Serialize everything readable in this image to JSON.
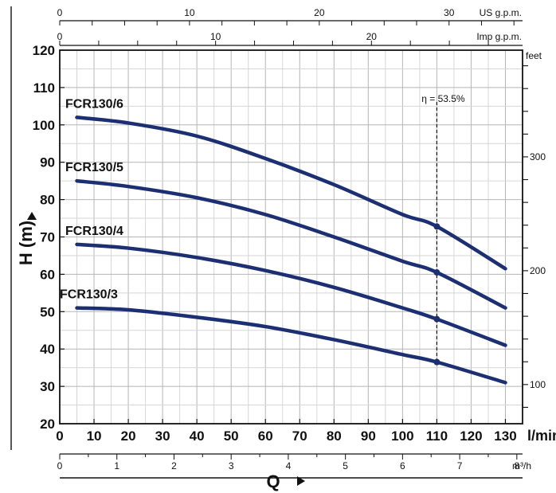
{
  "chart_data": {
    "type": "line",
    "xlabel": "Q",
    "ylabel": "H (m)",
    "x_unit": "l/min",
    "xlim": [
      0,
      135
    ],
    "ylim": [
      20,
      120
    ],
    "x_ticks": [
      0,
      10,
      20,
      30,
      40,
      50,
      60,
      70,
      80,
      90,
      100,
      110,
      120,
      130
    ],
    "y_ticks": [
      20,
      30,
      40,
      50,
      60,
      70,
      80,
      90,
      100,
      110,
      120
    ],
    "grid": true,
    "series": [
      {
        "name": "FCR130/6",
        "x": [
          5,
          20,
          40,
          60,
          80,
          100,
          110,
          130
        ],
        "y": [
          102,
          100.5,
          97,
          91,
          84,
          76,
          72.8,
          61.5
        ]
      },
      {
        "name": "FCR130/5",
        "x": [
          5,
          20,
          40,
          60,
          80,
          100,
          110,
          130
        ],
        "y": [
          85,
          83.5,
          80.5,
          76,
          70,
          63.5,
          60.5,
          51
        ]
      },
      {
        "name": "FCR130/4",
        "x": [
          5,
          20,
          40,
          60,
          80,
          100,
          110,
          130
        ],
        "y": [
          68,
          67,
          64.5,
          61,
          56.5,
          51,
          48,
          41
        ]
      },
      {
        "name": "FCR130/3",
        "x": [
          5,
          20,
          40,
          60,
          80,
          100,
          110,
          130
        ],
        "y": [
          51,
          50.5,
          48.5,
          46,
          42.5,
          38.5,
          36.5,
          31
        ]
      }
    ],
    "efficiency_marker": {
      "label": "η = 53.5%",
      "x": 110
    },
    "secondary_axes": {
      "us_gpm": {
        "label": "US g.p.m.",
        "ticks": [
          0,
          10,
          20,
          30
        ]
      },
      "imp_gpm": {
        "label": "Imp g.p.m.",
        "ticks": [
          0,
          10,
          20
        ]
      },
      "feet": {
        "label": "feet",
        "ticks": [
          100,
          200,
          300
        ]
      },
      "m3h": {
        "label": "m³/h",
        "ticks": [
          0,
          1,
          2,
          3,
          4,
          5,
          6,
          7,
          8
        ]
      }
    }
  }
}
